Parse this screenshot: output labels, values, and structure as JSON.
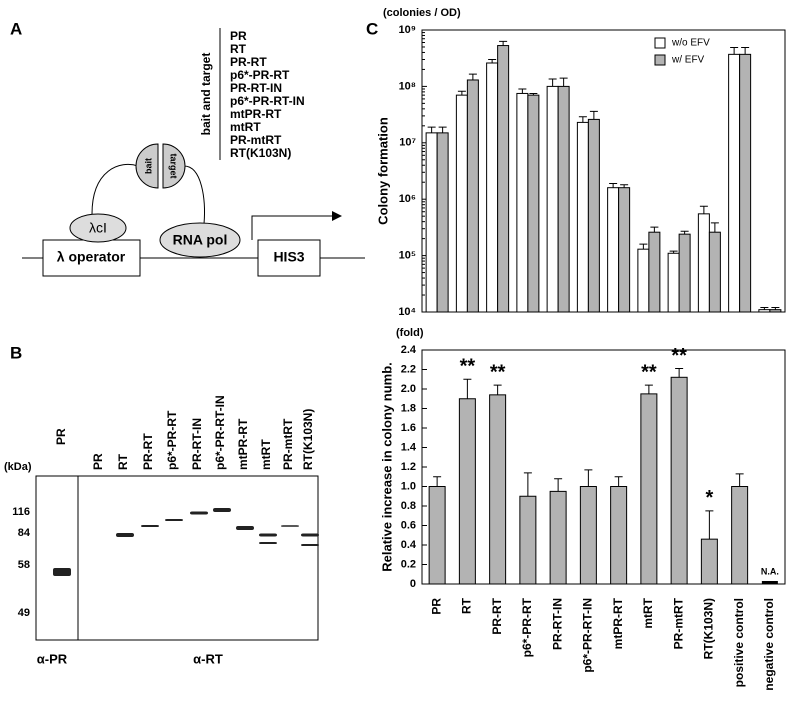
{
  "panel_a": {
    "label": "A",
    "list_title": "bait and target",
    "constructs": [
      "PR",
      "RT",
      "PR-RT",
      "p6*-PR-RT",
      "PR-RT-IN",
      "p6*-PR-RT-IN",
      "mtPR-RT",
      "mtRT",
      "PR-mtRT",
      "RT(K103N)"
    ],
    "diagram": {
      "repressor": "λcI",
      "bait": "bait",
      "target": "target",
      "polymerase": "RNA pol",
      "operator": "λ operator",
      "reporter": "HIS3"
    }
  },
  "panel_b": {
    "label": "B",
    "unit": "(kDa)",
    "markers": [
      "116",
      "84",
      "58",
      "49"
    ],
    "pr_lanes": [
      "PR"
    ],
    "rt_lanes": [
      "PR",
      "RT",
      "PR-RT",
      "p6*-PR-RT",
      "PR-RT-IN",
      "p6*-PR-RT-IN",
      "mtPR-RT",
      "mtRT",
      "PR-mtRT",
      "RT(K103N)"
    ],
    "pr_antibody": "α-PR",
    "rt_antibody": "α-RT"
  },
  "panel_c": {
    "label": "C"
  },
  "chart_data": [
    {
      "type": "bar",
      "subtitle": "(colonies / OD)",
      "y_label": "Colony formation",
      "log_scale": true,
      "legend": "upper right",
      "ylim": [
        10000,
        1000000000
      ],
      "yticks": [
        {
          "value": 10000,
          "label": "10⁴"
        },
        {
          "value": 100000,
          "label": "10⁵"
        },
        {
          "value": 1000000,
          "label": "10⁶"
        },
        {
          "value": 10000000,
          "label": "10⁷"
        },
        {
          "value": 100000000,
          "label": "10⁸"
        },
        {
          "value": 1000000000,
          "label": "10⁹"
        }
      ],
      "series": [
        {
          "name": "w/o EFV",
          "color": "#ffffff",
          "values": [
            15000000,
            70000000,
            260000000,
            75000000,
            100000000,
            23000000,
            1600000,
            130000,
            110000,
            550000,
            370000000,
            11000
          ],
          "errors": [
            4000000,
            12000000,
            40000000,
            15000000,
            35000000,
            6000000,
            300000,
            30000,
            10000,
            200000,
            120000000,
            1000
          ]
        },
        {
          "name": "w/ EFV",
          "color": "#b3b3b3",
          "values": [
            15000000,
            130000000,
            530000000,
            70000000,
            100000000,
            26000000,
            1600000,
            260000,
            240000,
            260000,
            370000000,
            11000
          ],
          "errors": [
            4000000,
            35000000,
            100000000,
            5000000,
            40000000,
            10000000,
            200000,
            60000,
            30000,
            120000,
            120000000,
            1000
          ]
        }
      ]
    },
    {
      "type": "bar",
      "subtitle": "(fold)",
      "y_label": "Relative increase in colony numb.",
      "color": "#b3b3b3",
      "categories": [
        "PR",
        "RT",
        "PR-RT",
        "p6*-PR-RT",
        "PR-RT-IN",
        "p6*-PR-RT-IN",
        "mtPR-RT",
        "mtRT",
        "PR-mtRT",
        "RT(K103N)",
        "positive control",
        "negative control"
      ],
      "values": [
        1.0,
        1.9,
        1.94,
        0.9,
        0.95,
        1.0,
        1.0,
        1.95,
        2.12,
        0.46,
        1.0,
        null
      ],
      "errors": [
        0.1,
        0.2,
        0.1,
        0.24,
        0.13,
        0.17,
        0.1,
        0.09,
        0.09,
        0.29,
        0.13,
        null
      ],
      "significance": [
        null,
        "**",
        "**",
        null,
        null,
        null,
        null,
        "**",
        "**",
        "*",
        null,
        null
      ],
      "na_label": "N.A.",
      "ylim": [
        0,
        2.4
      ],
      "yticks": [
        0,
        0.2,
        0.4,
        0.6,
        0.8,
        {
          "value": 1,
          "label": "1.0"
        },
        1.2,
        1.4,
        1.6,
        1.8,
        {
          "value": 2,
          "label": "2.0"
        },
        2.2,
        2.4
      ]
    }
  ]
}
